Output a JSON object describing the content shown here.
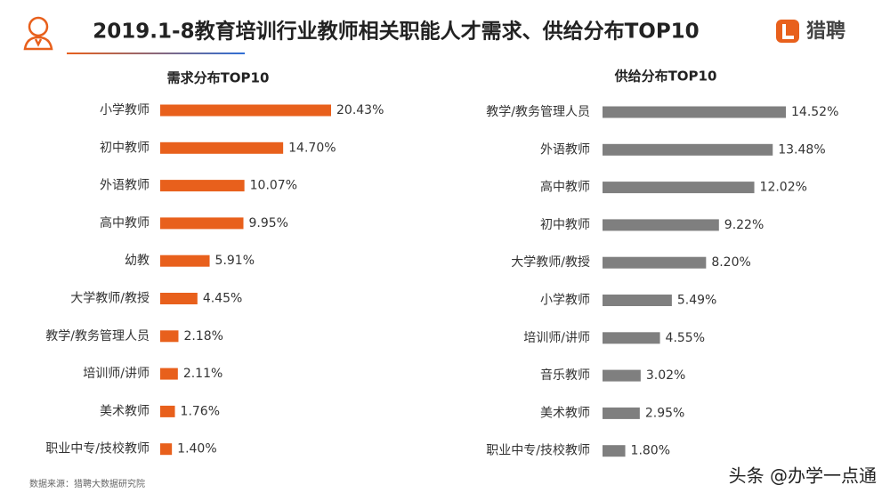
{
  "header": {
    "title": "2019.1-8教育培训行业教师相关职能人才需求、供给分布TOP10",
    "logo": "猎聘"
  },
  "source": "数据来源：猎聘大数据研究院",
  "watermark": "头条 @办学一点通",
  "chart_data": [
    {
      "type": "bar",
      "orientation": "horizontal",
      "title": "需求分布TOP10",
      "color": "#e8601c",
      "categories": [
        "小学教师",
        "初中教师",
        "外语教师",
        "高中教师",
        "幼教",
        "大学教师/教授",
        "教学/教务管理人员",
        "培训师/讲师",
        "美术教师",
        "职业中专/技校教师"
      ],
      "values": [
        20.43,
        14.7,
        10.07,
        9.95,
        5.91,
        4.45,
        2.18,
        2.11,
        1.76,
        1.4
      ],
      "value_labels": [
        "20.43%",
        "14.70%",
        "10.07%",
        "9.95%",
        "5.91%",
        "4.45%",
        "2.18%",
        "2.11%",
        "1.76%",
        "1.40%"
      ]
    },
    {
      "type": "bar",
      "orientation": "horizontal",
      "title": "供给分布TOP10",
      "color": "#7f7f7f",
      "categories": [
        "教学/教务管理人员",
        "外语教师",
        "高中教师",
        "初中教师",
        "大学教师/教授",
        "小学教师",
        "培训师/讲师",
        "音乐教师",
        "美术教师",
        "职业中专/技校教师"
      ],
      "values": [
        14.52,
        13.48,
        12.02,
        9.22,
        8.2,
        5.49,
        4.55,
        3.02,
        2.95,
        1.8
      ],
      "value_labels": [
        "14.52%",
        "13.48%",
        "12.02%",
        "9.22%",
        "8.20%",
        "5.49%",
        "4.55%",
        "3.02%",
        "2.95%",
        "1.80%"
      ]
    }
  ]
}
